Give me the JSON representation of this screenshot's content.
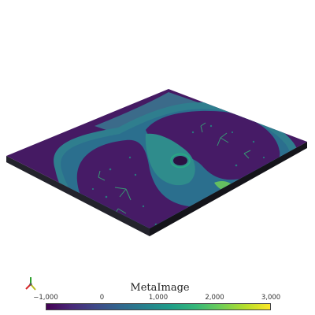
{
  "scene": {
    "colormap": [
      "#440154",
      "#482878",
      "#3e4a89",
      "#31688e",
      "#26828e",
      "#1f9e89",
      "#35b779",
      "#6ece58",
      "#b5de2b",
      "#fde725"
    ],
    "slab_side_color": "#1c1c22",
    "background": "#ffffff"
  },
  "colorbar": {
    "title": "MetaImage",
    "range": [
      -1000,
      3000
    ],
    "ticks": [
      {
        "label": "−1,000",
        "value": -1000
      },
      {
        "label": "0",
        "value": 0
      },
      {
        "label": "1,000",
        "value": 1000
      },
      {
        "label": "2,000",
        "value": 2000
      },
      {
        "label": "3,000",
        "value": 3000
      }
    ]
  },
  "axes_widget": {
    "axes": [
      {
        "name": "x",
        "color": "#d62728"
      },
      {
        "name": "y",
        "color": "#bcbd22"
      },
      {
        "name": "z",
        "color": "#2ca02c"
      }
    ]
  }
}
